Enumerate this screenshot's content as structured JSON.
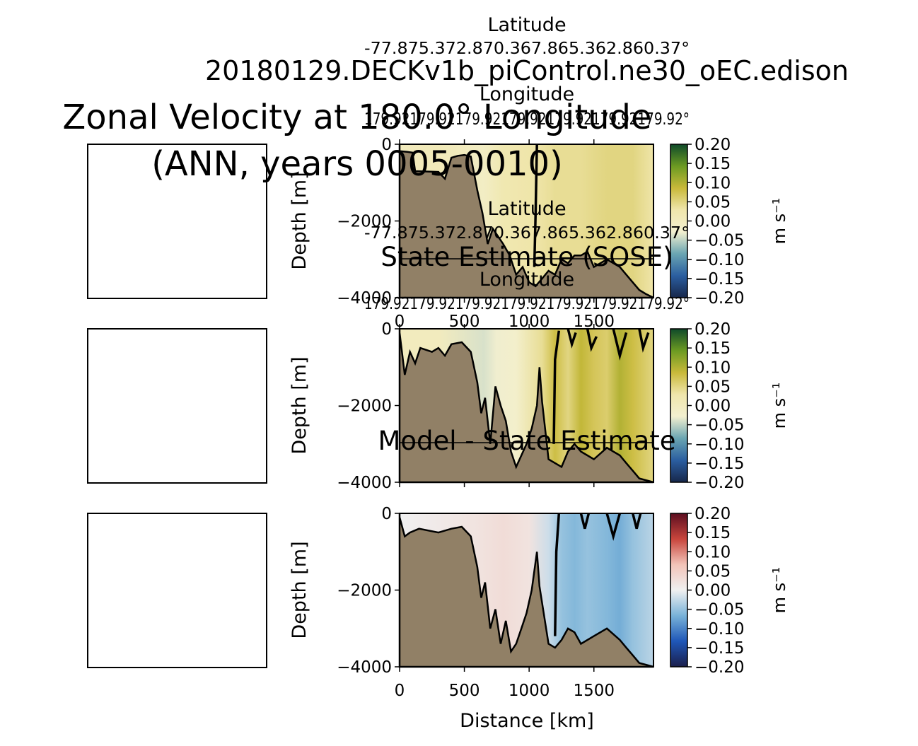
{
  "figure": {
    "suptitle_line1": "Zonal Velocity at 180.0° Longitude",
    "suptitle_line2": "(ANN, years 0005-0010)",
    "run_name": "20180129.DECKv1b_piControl.ne30_oEC.edison",
    "xlabel": "Distance [km]"
  },
  "colors": {
    "bathymetry": "#918066",
    "cmap_model": [
      "#17274a",
      "#2b5ea0",
      "#6aa5b2",
      "#f3f0d0",
      "#f0e6ac",
      "#c9b93a",
      "#6c9a22",
      "#0f4a2a"
    ],
    "cmap_diff": [
      "#1b1f4b",
      "#1f57b8",
      "#78b2d8",
      "#f0f0f0",
      "#f2c3b8",
      "#c8453c",
      "#5c0e20"
    ]
  },
  "chart_data": [
    {
      "type": "heatmap",
      "name": "model",
      "title": "",
      "xlabel": "",
      "ylabel": "Depth [m]",
      "xlim": [
        0,
        1960
      ],
      "ylim": [
        -4000,
        0
      ],
      "yticks": [
        "0",
        "−2000",
        "−4000"
      ],
      "top_axis_label_1": "Latitude",
      "top_axis_ticks_1": "-77.875.372.870.367.865.362.860.37°",
      "top_axis_label_2": "Longitude",
      "top_axis_ticks_2": "179.92179.92179.92179.92179.92179.92179.92°",
      "colorbar_ticks": [
        "0.20",
        "0.15",
        "0.10",
        "0.05",
        "0.00",
        "−0.05",
        "−0.10",
        "−0.15",
        "−0.20"
      ],
      "colorbar_label": "m s⁻¹",
      "colorbar_range": [
        -0.2,
        0.2
      ],
      "bathymetry": [
        [
          0,
          -180
        ],
        [
          60,
          -200
        ],
        [
          100,
          -220
        ],
        [
          120,
          -700
        ],
        [
          300,
          -720
        ],
        [
          350,
          -900
        ],
        [
          400,
          -350
        ],
        [
          450,
          -300
        ],
        [
          500,
          -280
        ],
        [
          550,
          -320
        ],
        [
          600,
          -1200
        ],
        [
          640,
          -1800
        ],
        [
          680,
          -2600
        ],
        [
          720,
          -2200
        ],
        [
          800,
          -2600
        ],
        [
          850,
          -2900
        ],
        [
          900,
          -3400
        ],
        [
          950,
          -3200
        ],
        [
          1000,
          -3600
        ],
        [
          1050,
          -3700
        ],
        [
          1100,
          -3500
        ],
        [
          1150,
          -3300
        ],
        [
          1200,
          -3400
        ],
        [
          1250,
          -3000
        ],
        [
          1300,
          -3100
        ],
        [
          1350,
          -2900
        ],
        [
          1400,
          -2900
        ],
        [
          1450,
          -2800
        ],
        [
          1500,
          -3200
        ],
        [
          1600,
          -3000
        ],
        [
          1700,
          -3200
        ],
        [
          1750,
          -3400
        ],
        [
          1800,
          -3600
        ],
        [
          1850,
          -3800
        ],
        [
          1900,
          -3900
        ],
        [
          1960,
          -4000
        ]
      ],
      "velocity_bands": [
        [
          0,
          0.0
        ],
        [
          300,
          0.01
        ],
        [
          650,
          -0.01
        ],
        [
          800,
          0.02
        ],
        [
          1050,
          0.03
        ],
        [
          1200,
          0.04
        ],
        [
          1400,
          0.04
        ],
        [
          1600,
          0.05
        ],
        [
          1800,
          0.05
        ],
        [
          1960,
          0.03
        ]
      ],
      "zero_contours": [
        [
          [
            1060,
            0
          ],
          [
            1050,
            -1800
          ],
          [
            1040,
            -3200
          ]
        ]
      ]
    },
    {
      "type": "heatmap",
      "name": "sose",
      "title": "State Estimate (SOSE)",
      "xlabel": "",
      "ylabel": "Depth [m]",
      "xlim": [
        0,
        1960
      ],
      "ylim": [
        -4000,
        0
      ],
      "xticks": [
        "0",
        "500",
        "1000",
        "1500"
      ],
      "yticks": [
        "0",
        "−2000",
        "−4000"
      ],
      "top_axis_label_1": "Latitude",
      "top_axis_ticks_1": "-77.875.372.870.367.865.362.860.37°",
      "top_axis_label_2": "Longitude",
      "top_axis_ticks_2": "179.92179.92179.92179.92179.92179.92179.92°",
      "colorbar_ticks": [
        "0.20",
        "0.15",
        "0.10",
        "0.05",
        "0.00",
        "−0.05",
        "−0.10",
        "−0.15",
        "−0.20"
      ],
      "colorbar_label": "m s⁻¹",
      "colorbar_range": [
        -0.2,
        0.2
      ],
      "bathymetry": [
        [
          0,
          -100
        ],
        [
          40,
          -1200
        ],
        [
          80,
          -600
        ],
        [
          120,
          -900
        ],
        [
          160,
          -500
        ],
        [
          250,
          -600
        ],
        [
          300,
          -500
        ],
        [
          350,
          -700
        ],
        [
          400,
          -400
        ],
        [
          480,
          -350
        ],
        [
          550,
          -600
        ],
        [
          600,
          -1400
        ],
        [
          630,
          -2200
        ],
        [
          660,
          -1800
        ],
        [
          700,
          -3000
        ],
        [
          740,
          -1500
        ],
        [
          780,
          -2000
        ],
        [
          820,
          -2400
        ],
        [
          860,
          -3200
        ],
        [
          900,
          -3600
        ],
        [
          940,
          -3300
        ],
        [
          980,
          -3000
        ],
        [
          1020,
          -2600
        ],
        [
          1060,
          -2000
        ],
        [
          1080,
          -1000
        ],
        [
          1100,
          -1900
        ],
        [
          1150,
          -3400
        ],
        [
          1200,
          -3500
        ],
        [
          1250,
          -3600
        ],
        [
          1300,
          -3200
        ],
        [
          1350,
          -3000
        ],
        [
          1400,
          -3200
        ],
        [
          1500,
          -3400
        ],
        [
          1600,
          -3100
        ],
        [
          1700,
          -3300
        ],
        [
          1750,
          -3500
        ],
        [
          1800,
          -3700
        ],
        [
          1850,
          -3900
        ],
        [
          1960,
          -4000
        ]
      ],
      "velocity_bands": [
        [
          0,
          0.0
        ],
        [
          300,
          0.0
        ],
        [
          650,
          -0.04
        ],
        [
          750,
          -0.03
        ],
        [
          900,
          -0.02
        ],
        [
          1100,
          0.04
        ],
        [
          1200,
          0.08
        ],
        [
          1300,
          0.05
        ],
        [
          1400,
          0.09
        ],
        [
          1500,
          0.07
        ],
        [
          1600,
          0.06
        ],
        [
          1700,
          0.1
        ],
        [
          1800,
          0.08
        ],
        [
          1960,
          0.05
        ]
      ],
      "zero_contours": [
        [
          [
            1190,
            -3000
          ],
          [
            1200,
            -800
          ],
          [
            1230,
            -50
          ]
        ],
        [
          [
            1300,
            0
          ],
          [
            1330,
            -400
          ],
          [
            1360,
            -100
          ]
        ],
        [
          [
            1450,
            0
          ],
          [
            1480,
            -500
          ],
          [
            1520,
            -200
          ]
        ],
        [
          [
            1650,
            0
          ],
          [
            1700,
            -700
          ],
          [
            1750,
            -100
          ]
        ],
        [
          [
            1850,
            0
          ],
          [
            1880,
            -500
          ],
          [
            1920,
            -100
          ]
        ]
      ]
    },
    {
      "type": "heatmap",
      "name": "difference",
      "title": "Model - State Estimate",
      "xlabel": "Distance [km]",
      "ylabel": "Depth [m]",
      "xlim": [
        0,
        1960
      ],
      "ylim": [
        -4000,
        0
      ],
      "xticks": [
        "0",
        "500",
        "1000",
        "1500"
      ],
      "yticks": [
        "0",
        "−2000",
        "−4000"
      ],
      "colorbar_ticks": [
        "0.20",
        "0.15",
        "0.10",
        "0.05",
        "0.00",
        "−0.05",
        "−0.10",
        "−0.15",
        "−0.20"
      ],
      "colorbar_label": "m s⁻¹",
      "colorbar_range": [
        -0.2,
        0.2
      ],
      "bathymetry": [
        [
          0,
          -100
        ],
        [
          40,
          -600
        ],
        [
          80,
          -500
        ],
        [
          150,
          -400
        ],
        [
          300,
          -500
        ],
        [
          400,
          -400
        ],
        [
          480,
          -350
        ],
        [
          550,
          -600
        ],
        [
          600,
          -1400
        ],
        [
          630,
          -2200
        ],
        [
          660,
          -1800
        ],
        [
          700,
          -3000
        ],
        [
          740,
          -2500
        ],
        [
          780,
          -3400
        ],
        [
          820,
          -2800
        ],
        [
          860,
          -3600
        ],
        [
          900,
          -3400
        ],
        [
          940,
          -3000
        ],
        [
          980,
          -2600
        ],
        [
          1020,
          -2000
        ],
        [
          1060,
          -1000
        ],
        [
          1080,
          -1900
        ],
        [
          1150,
          -3400
        ],
        [
          1200,
          -3500
        ],
        [
          1250,
          -3300
        ],
        [
          1300,
          -3000
        ],
        [
          1350,
          -3100
        ],
        [
          1400,
          -3400
        ],
        [
          1500,
          -3200
        ],
        [
          1600,
          -3000
        ],
        [
          1700,
          -3300
        ],
        [
          1750,
          -3500
        ],
        [
          1800,
          -3700
        ],
        [
          1850,
          -3900
        ],
        [
          1960,
          -4000
        ]
      ],
      "velocity_bands": [
        [
          0,
          0.0
        ],
        [
          300,
          0.01
        ],
        [
          600,
          0.02
        ],
        [
          800,
          0.03
        ],
        [
          1000,
          0.02
        ],
        [
          1150,
          -0.02
        ],
        [
          1250,
          -0.05
        ],
        [
          1350,
          -0.06
        ],
        [
          1450,
          -0.05
        ],
        [
          1600,
          -0.06
        ],
        [
          1700,
          -0.07
        ],
        [
          1800,
          -0.05
        ],
        [
          1960,
          -0.03
        ]
      ],
      "zero_contours": [
        [
          [
            1200,
            -3200
          ],
          [
            1210,
            -1000
          ],
          [
            1230,
            0
          ]
        ],
        [
          [
            1400,
            0
          ],
          [
            1430,
            -400
          ],
          [
            1460,
            0
          ]
        ],
        [
          [
            1600,
            0
          ],
          [
            1650,
            -600
          ],
          [
            1700,
            0
          ]
        ],
        [
          [
            1800,
            0
          ],
          [
            1830,
            -400
          ],
          [
            1860,
            0
          ]
        ]
      ]
    }
  ]
}
